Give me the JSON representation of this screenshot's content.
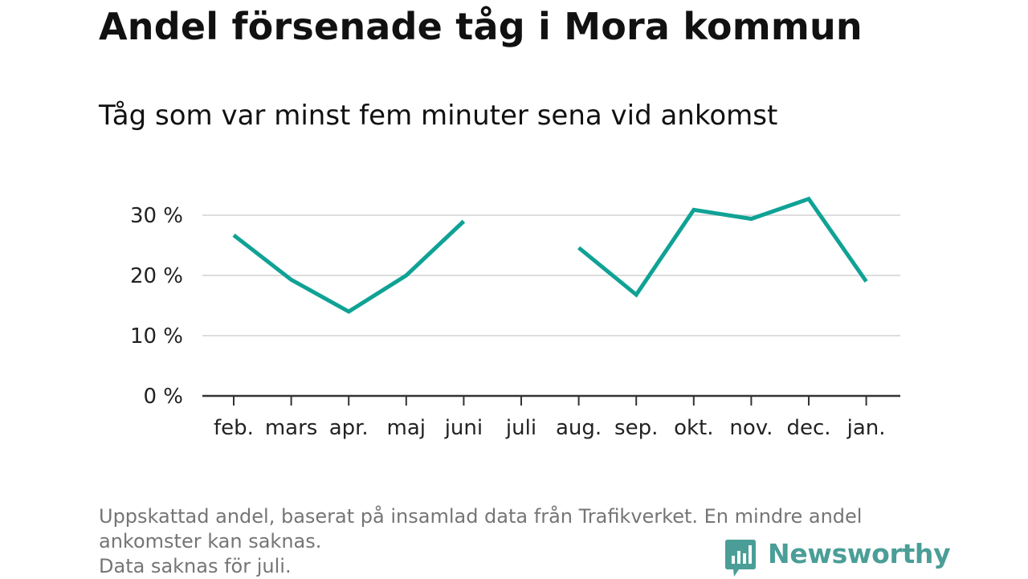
{
  "header": {
    "title": "Andel försenade tåg i Mora kommun",
    "subtitle": "Tåg som var minst fem minuter sena vid ankomst"
  },
  "chart_data": {
    "type": "line",
    "categories": [
      "feb.",
      "mars",
      "apr.",
      "maj",
      "juni",
      "juli",
      "aug.",
      "sep.",
      "okt.",
      "nov.",
      "dec.",
      "jan."
    ],
    "series": [
      {
        "values": [
          26.7,
          19.3,
          14.0,
          20.0,
          29.0,
          null,
          24.6,
          16.8,
          30.9,
          29.4,
          32.7,
          19.0
        ]
      }
    ],
    "y_ticks": [
      0,
      10,
      20,
      30
    ],
    "y_tick_suffix": " %",
    "ylim": [
      0,
      34
    ],
    "grid": true,
    "line_color": "#0fa295"
  },
  "footer": {
    "note_lines": [
      "Uppskattad andel, baserat på insamlad data från Trafikverket. En mindre andel",
      "ankomster kan saknas.",
      "Data saknas för juli."
    ],
    "brand": "Newsworthy",
    "brand_icon": "newsworthy-logo-icon"
  }
}
